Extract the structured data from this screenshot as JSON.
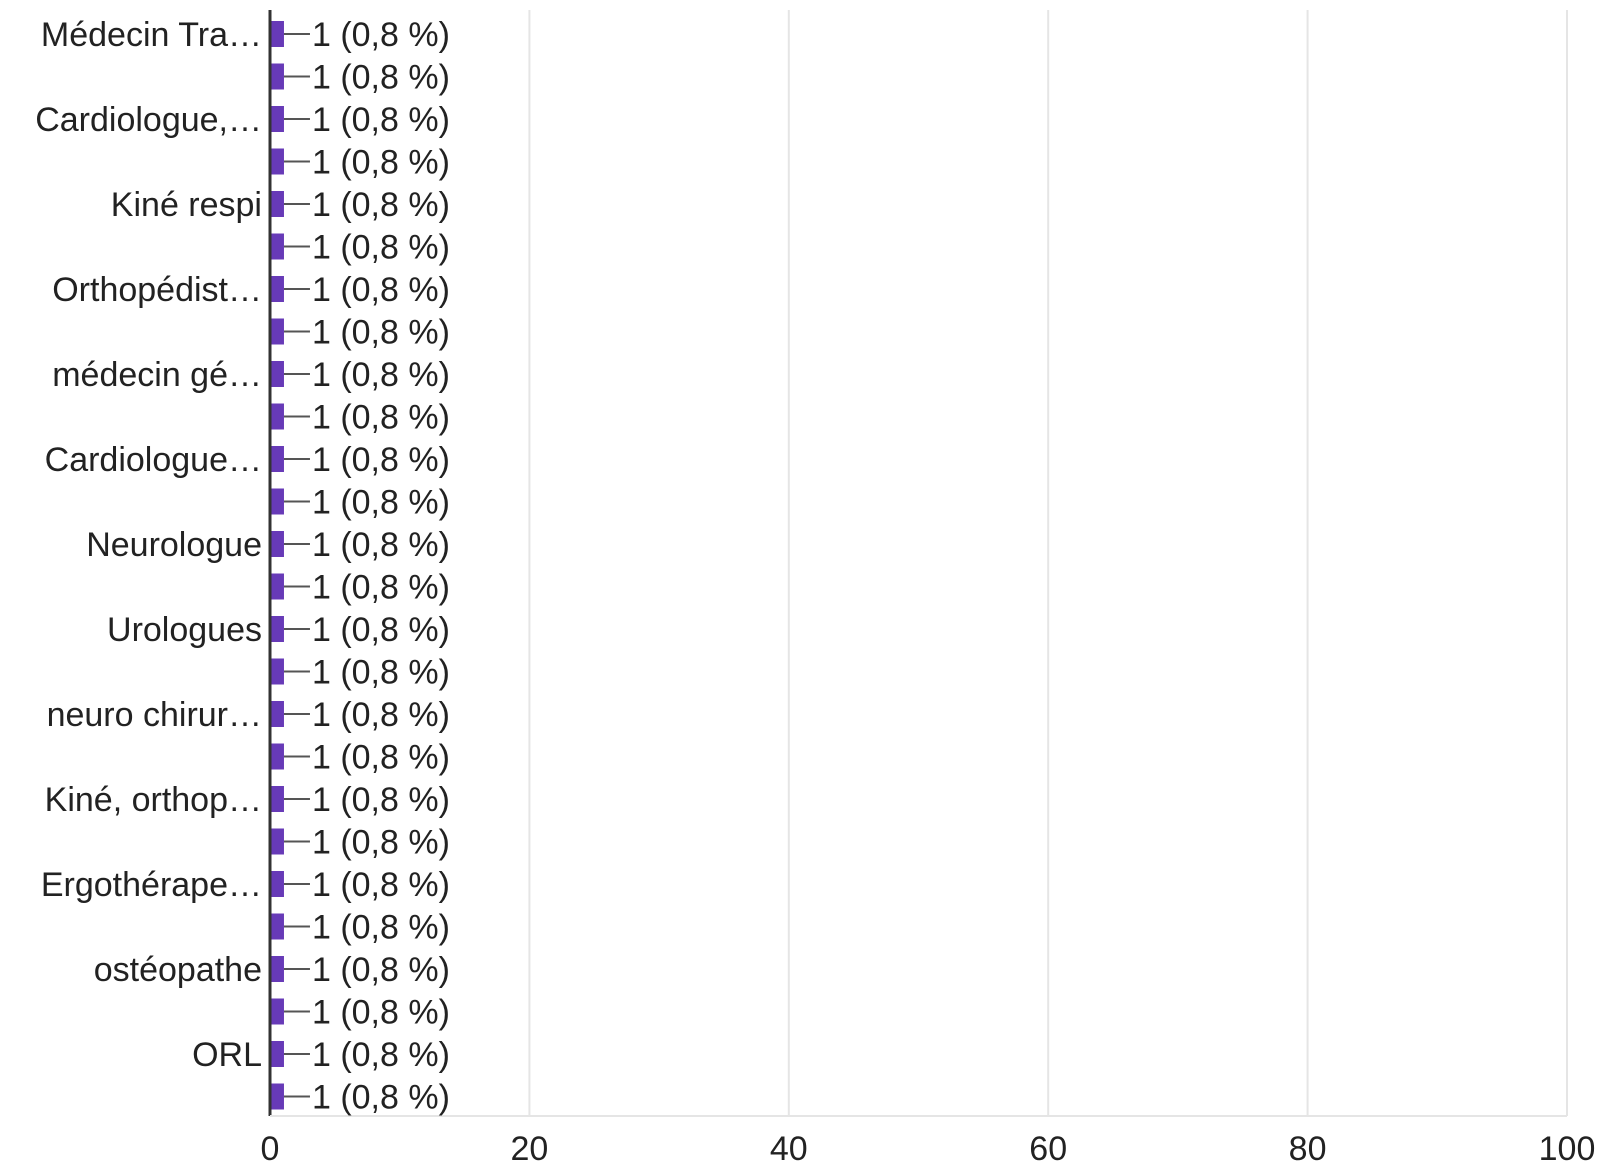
{
  "colors": {
    "bar": "#673ab7",
    "grid": "#e5e5e5",
    "axis": "#333333",
    "text": "#222222",
    "connector": "#555555"
  },
  "chart_data": {
    "type": "bar",
    "orientation": "horizontal",
    "categories": [
      "Médecin Tra…",
      "",
      "Cardiologue,…",
      "",
      "Kiné respi",
      "",
      "Orthopédist…",
      "",
      "médecin gé…",
      "",
      "Cardiologue…",
      "",
      "Neurologue",
      "",
      "Urologues",
      "",
      "neuro chirur…",
      "",
      "Kiné, orthop…",
      "",
      "Ergothérape…",
      "",
      "ostéopathe",
      "",
      "ORL",
      ""
    ],
    "values": [
      1,
      1,
      1,
      1,
      1,
      1,
      1,
      1,
      1,
      1,
      1,
      1,
      1,
      1,
      1,
      1,
      1,
      1,
      1,
      1,
      1,
      1,
      1,
      1,
      1,
      1
    ],
    "data_labels": [
      "1 (0,8 %)",
      "1 (0,8 %)",
      "1 (0,8 %)",
      "1 (0,8 %)",
      "1 (0,8 %)",
      "1 (0,8 %)",
      "1 (0,8 %)",
      "1 (0,8 %)",
      "1 (0,8 %)",
      "1 (0,8 %)",
      "1 (0,8 %)",
      "1 (0,8 %)",
      "1 (0,8 %)",
      "1 (0,8 %)",
      "1 (0,8 %)",
      "1 (0,8 %)",
      "1 (0,8 %)",
      "1 (0,8 %)",
      "1 (0,8 %)",
      "1 (0,8 %)",
      "1 (0,8 %)",
      "1 (0,8 %)",
      "1 (0,8 %)",
      "1 (0,8 %)",
      "1 (0,8 %)",
      "1 (0,8 %)"
    ],
    "xlim": [
      0,
      100
    ],
    "x_ticks": [
      "0",
      "20",
      "40",
      "60",
      "80",
      "100"
    ],
    "grid": true,
    "title": "",
    "xlabel": "",
    "ylabel": ""
  }
}
